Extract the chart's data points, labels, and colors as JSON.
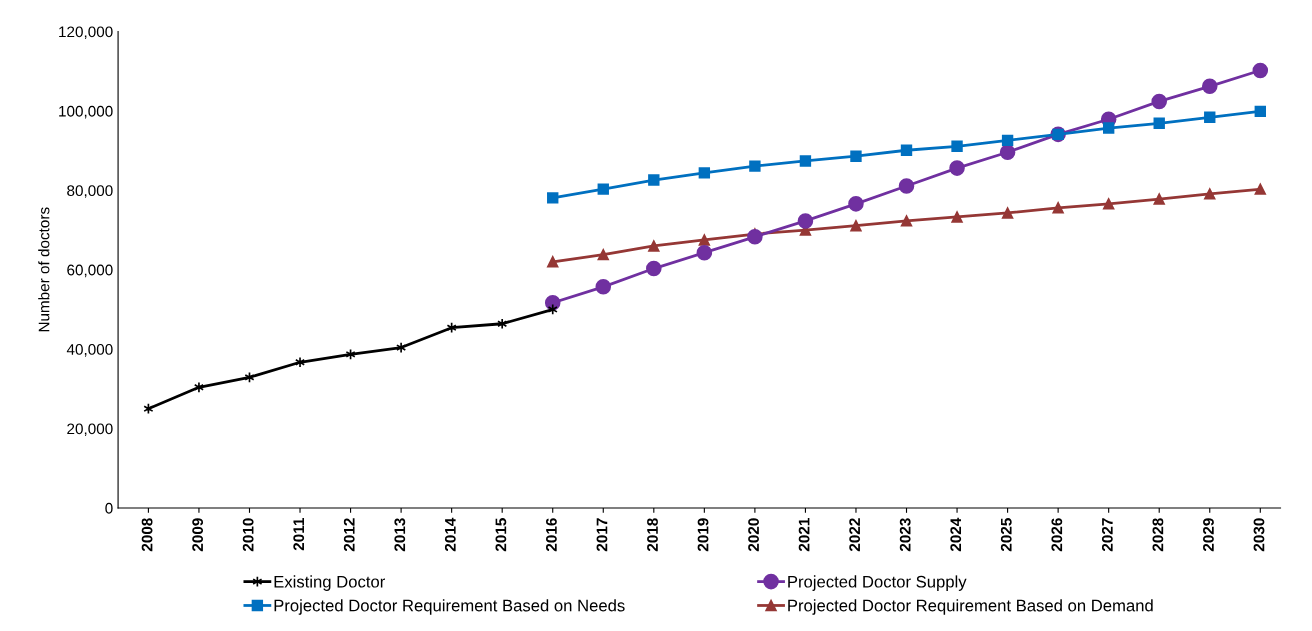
{
  "chart_data": {
    "type": "line",
    "ylabel": "Number of doctors",
    "categories": [
      "2008",
      "2009",
      "2010",
      "2011",
      "2012",
      "2013",
      "2014",
      "2015",
      "2016",
      "2017",
      "2018",
      "2019",
      "2020",
      "2021",
      "2022",
      "2023",
      "2024",
      "2025",
      "2026",
      "2027",
      "2028",
      "2029",
      "2030"
    ],
    "ylim": [
      0,
      120000
    ],
    "yticks": [
      0,
      {
        "value": 20000,
        "label": "20,000"
      },
      {
        "value": 40000,
        "label": "40,000"
      },
      {
        "value": 60000,
        "label": "60,000"
      },
      {
        "value": 80000,
        "label": "80,000"
      },
      {
        "value": 100000,
        "label": "100,000"
      },
      {
        "value": 120000,
        "label": "120,000"
      }
    ],
    "grid": false,
    "legend": "bottom",
    "series": [
      {
        "name": "Existing Doctor",
        "color": "#000000",
        "marker": "cross",
        "values": [
          25000,
          30400,
          32900,
          36700,
          38700,
          40400,
          45400,
          46400,
          50000,
          null,
          null,
          null,
          null,
          null,
          null,
          null,
          null,
          null,
          null,
          null,
          null,
          null,
          null
        ]
      },
      {
        "name": "Projected Doctor Supply",
        "color": "#7030a0",
        "marker": "circle",
        "values": [
          null,
          null,
          null,
          null,
          null,
          null,
          null,
          null,
          51700,
          55700,
          60300,
          64300,
          68300,
          72300,
          76600,
          81100,
          85600,
          89600,
          94100,
          97900,
          102400,
          106200,
          110200
        ]
      },
      {
        "name": "Projected Doctor Requirement Based on Needs",
        "color": "#0070c0",
        "marker": "square",
        "values": [
          null,
          null,
          null,
          null,
          null,
          null,
          null,
          null,
          78100,
          80300,
          82600,
          84400,
          86100,
          87400,
          88600,
          90100,
          91100,
          92600,
          94100,
          95700,
          96900,
          98400,
          99900
        ]
      },
      {
        "name": "Projected Doctor Requirement Based on Demand",
        "color": "#953735",
        "marker": "triangle",
        "values": [
          null,
          null,
          null,
          null,
          null,
          null,
          null,
          null,
          62000,
          63800,
          66000,
          67500,
          69000,
          70000,
          71100,
          72300,
          73300,
          74300,
          75600,
          76600,
          77800,
          79100,
          80300
        ]
      }
    ]
  }
}
